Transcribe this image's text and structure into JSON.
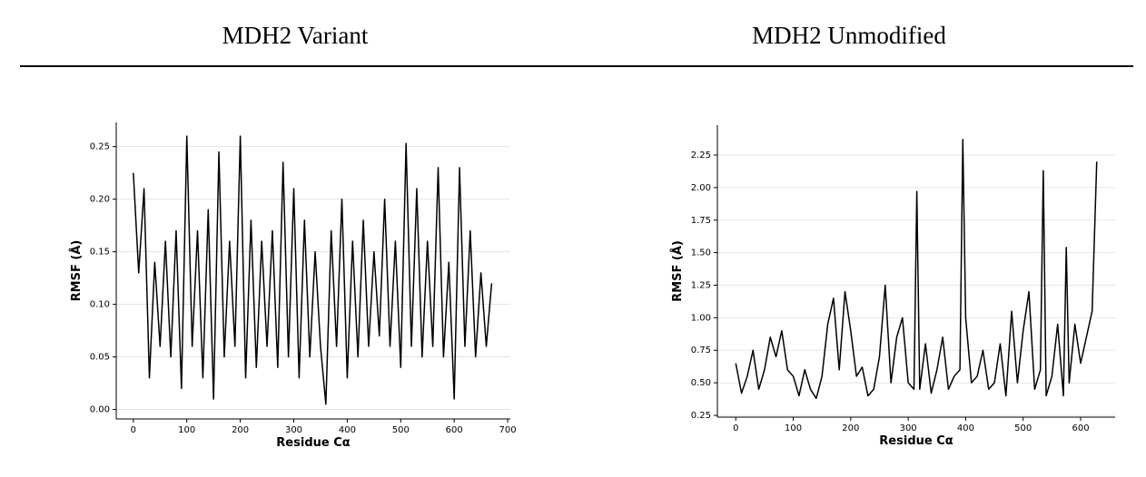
{
  "header": {
    "left_title": "MDH2 Variant",
    "right_title": "MDH2 Unmodified"
  },
  "chart_data": [
    {
      "type": "line",
      "xlabel": "Residue Cα",
      "ylabel": "RMSF (Å)",
      "color": "#000000",
      "grid": true,
      "xlim": [
        -32,
        705
      ],
      "ylim": [
        -0.009,
        0.273
      ],
      "xticks": [
        0,
        100,
        200,
        300,
        400,
        500,
        600,
        700
      ],
      "yticks": [
        {
          "value": 0,
          "label": "0.00"
        },
        0.05,
        {
          "value": 0.1,
          "label": "0.10"
        },
        0.15,
        {
          "value": 0.2,
          "label": "0.20"
        },
        0.25
      ],
      "x": [
        0,
        10,
        20,
        30,
        40,
        50,
        60,
        70,
        80,
        90,
        100,
        110,
        120,
        130,
        140,
        150,
        160,
        170,
        180,
        190,
        200,
        210,
        220,
        230,
        240,
        250,
        260,
        270,
        280,
        290,
        300,
        310,
        320,
        330,
        340,
        350,
        360,
        370,
        380,
        390,
        400,
        410,
        420,
        430,
        440,
        450,
        460,
        470,
        480,
        490,
        500,
        510,
        520,
        530,
        540,
        550,
        560,
        570,
        580,
        590,
        600,
        610,
        620,
        630,
        640,
        650,
        660,
        670
      ],
      "values": [
        0.225,
        0.13,
        0.21,
        0.03,
        0.14,
        0.06,
        0.16,
        0.05,
        0.17,
        0.02,
        0.26,
        0.06,
        0.17,
        0.03,
        0.19,
        0.01,
        0.245,
        0.05,
        0.16,
        0.06,
        0.26,
        0.03,
        0.18,
        0.04,
        0.16,
        0.06,
        0.17,
        0.04,
        0.235,
        0.05,
        0.21,
        0.03,
        0.18,
        0.05,
        0.15,
        0.06,
        0.005,
        0.17,
        0.06,
        0.2,
        0.03,
        0.16,
        0.05,
        0.18,
        0.06,
        0.15,
        0.07,
        0.2,
        0.06,
        0.16,
        0.04,
        0.253,
        0.06,
        0.21,
        0.05,
        0.16,
        0.06,
        0.23,
        0.05,
        0.14,
        0.01,
        0.23,
        0.06,
        0.17,
        0.05,
        0.13,
        0.06,
        0.12
      ]
    },
    {
      "type": "line",
      "xlabel": "Residue Cα",
      "ylabel": "RMSF (Å)",
      "color": "#000000",
      "grid": true,
      "xlim": [
        -32,
        660
      ],
      "ylim": [
        0.236,
        2.48
      ],
      "xticks": [
        0,
        100,
        200,
        300,
        400,
        500,
        600
      ],
      "yticks": [
        0.25,
        {
          "value": 0.5,
          "label": "0.50"
        },
        0.75,
        {
          "value": 1,
          "label": "1.00"
        },
        1.25,
        {
          "value": 1.5,
          "label": "1.50"
        },
        1.75,
        {
          "value": 2,
          "label": "2.00"
        },
        2.25
      ],
      "x": [
        0,
        10,
        20,
        30,
        40,
        50,
        60,
        70,
        80,
        90,
        100,
        110,
        120,
        130,
        140,
        150,
        160,
        170,
        180,
        190,
        200,
        210,
        220,
        230,
        240,
        250,
        260,
        270,
        280,
        290,
        300,
        310,
        315,
        320,
        330,
        340,
        350,
        360,
        370,
        380,
        390,
        395,
        400,
        410,
        420,
        430,
        440,
        450,
        460,
        470,
        480,
        490,
        500,
        510,
        520,
        530,
        535,
        540,
        550,
        560,
        570,
        575,
        580,
        590,
        600,
        610,
        620,
        628
      ],
      "values": [
        0.65,
        0.42,
        0.55,
        0.75,
        0.45,
        0.6,
        0.85,
        0.7,
        0.9,
        0.6,
        0.55,
        0.4,
        0.6,
        0.45,
        0.38,
        0.55,
        0.95,
        1.15,
        0.6,
        1.2,
        0.9,
        0.55,
        0.62,
        0.4,
        0.45,
        0.7,
        1.25,
        0.5,
        0.85,
        1.0,
        0.5,
        0.45,
        1.97,
        0.45,
        0.8,
        0.42,
        0.6,
        0.85,
        0.45,
        0.55,
        0.6,
        2.37,
        1.0,
        0.5,
        0.55,
        0.75,
        0.45,
        0.5,
        0.8,
        0.4,
        1.05,
        0.5,
        0.9,
        1.2,
        0.45,
        0.6,
        2.13,
        0.4,
        0.55,
        0.95,
        0.4,
        1.54,
        0.5,
        0.95,
        0.65,
        0.85,
        1.05,
        2.2
      ]
    }
  ]
}
